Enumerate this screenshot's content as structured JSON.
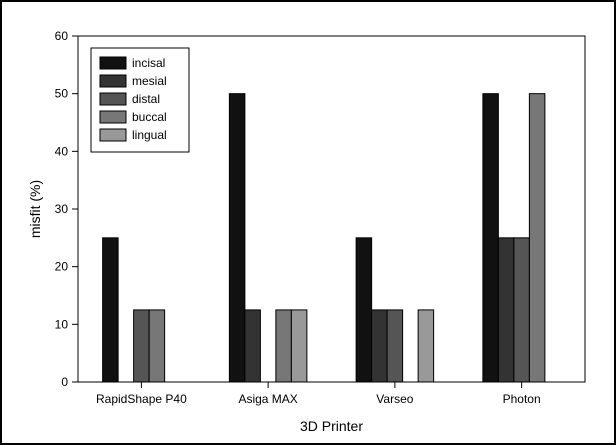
{
  "chart_data": {
    "type": "bar",
    "title": "",
    "xlabel": "3D Printer",
    "ylabel": "misfit (%)",
    "ylim": [
      0,
      60
    ],
    "yticks": [
      0,
      10,
      20,
      30,
      40,
      50,
      60
    ],
    "grid": false,
    "legend_position": "top-left",
    "categories": [
      "RapidShape P40",
      "Asiga MAX",
      "Varseo",
      "Photon"
    ],
    "series": [
      {
        "name": "incisal",
        "color": "#111111",
        "values": [
          25,
          50,
          25,
          50
        ]
      },
      {
        "name": "mesial",
        "color": "#333333",
        "values": [
          0,
          12.5,
          12.5,
          25
        ]
      },
      {
        "name": "distal",
        "color": "#555555",
        "values": [
          12.5,
          0,
          12.5,
          25
        ]
      },
      {
        "name": "buccal",
        "color": "#777777",
        "values": [
          12.5,
          12.5,
          0,
          50
        ]
      },
      {
        "name": "lingual",
        "color": "#999999",
        "values": [
          0,
          12.5,
          12.5,
          0
        ]
      }
    ]
  }
}
